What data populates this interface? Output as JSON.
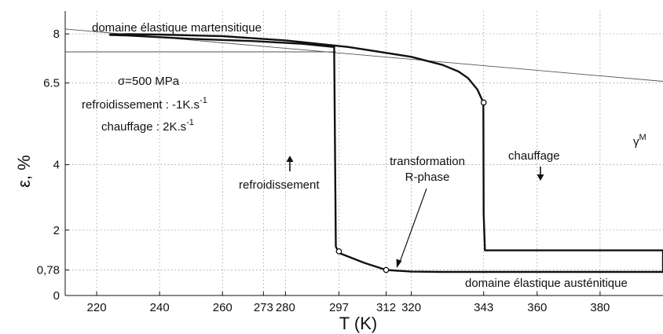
{
  "chart_data": {
    "type": "line",
    "xlabel": "T (K)",
    "ylabel": "ε, %",
    "xlim": [
      210,
      400
    ],
    "ylim": [
      0,
      8.7
    ],
    "x_ticks": [
      220,
      240,
      260,
      273,
      280,
      297,
      312,
      320,
      343,
      360,
      380
    ],
    "y_ticks": [
      0,
      0.78,
      2,
      4,
      6.5,
      8
    ],
    "y_tick_labels": [
      "0",
      "0,78",
      "2",
      "4",
      "6.5",
      "8"
    ],
    "grid": true,
    "series": [
      {
        "role": "cooling-heating loop",
        "x": [
          224,
          230,
          250,
          270,
          285,
          295.5,
          296,
          297,
          305,
          312,
          320,
          330,
          340,
          360,
          400,
          400,
          380,
          360,
          343.4,
          343,
          342.9,
          341,
          338,
          335,
          330,
          320,
          300,
          280,
          260,
          240,
          230,
          224
        ],
        "y": [
          7.97,
          7.95,
          7.85,
          7.78,
          7.7,
          7.6,
          1.5,
          1.3,
          1.0,
          0.78,
          0.73,
          0.72,
          0.72,
          0.72,
          0.72,
          1.38,
          1.38,
          1.38,
          1.38,
          2.5,
          5.9,
          6.3,
          6.65,
          6.85,
          7.05,
          7.3,
          7.6,
          7.8,
          7.93,
          7.98,
          7.99,
          7.98
        ]
      },
      {
        "role": "elastic line (martensite)",
        "x": [
          210,
          400
        ],
        "y": [
          8.15,
          6.55
        ]
      },
      {
        "role": "horizontal reference",
        "x": [
          210,
          296
        ],
        "y": [
          7.45,
          7.45
        ]
      }
    ],
    "markers": [
      {
        "x": 297,
        "y": 1.35
      },
      {
        "x": 312,
        "y": 0.78
      },
      {
        "x": 343,
        "y": 5.9
      }
    ],
    "annotations": {
      "martensitic_label": "domaine élastique martensitique",
      "austenitic_label": "domaine élastique austénitique",
      "sigma": "σ=500 MPa",
      "cooling_rate": "refroidissement : -1K.s",
      "cooling_rate_exp": "-1",
      "heating_rate": "chauffage : 2K.s",
      "heating_rate_exp": "-1",
      "cooling": "refroidissement",
      "heating": "chauffage",
      "transformation_line1": "transformation",
      "transformation_line2": "R-phase",
      "gamma": "γ",
      "gamma_sup": "M"
    }
  }
}
